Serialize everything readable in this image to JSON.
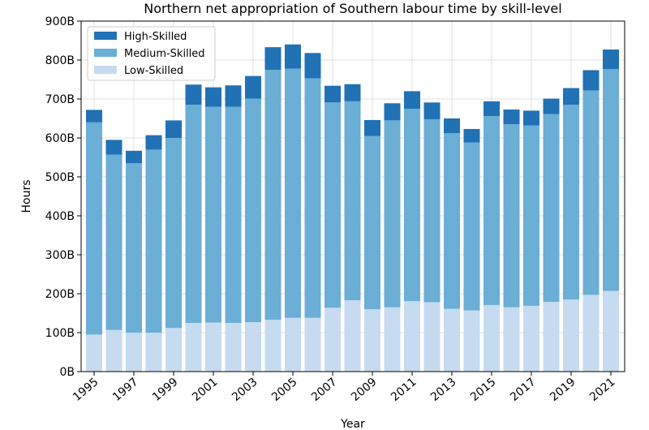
{
  "chart_data": {
    "type": "bar",
    "stacked": true,
    "title": "Northern net appropriation of Southern labour time by skill-level",
    "xlabel": "Year",
    "ylabel": "Hours",
    "ylim": [
      0,
      900
    ],
    "y_unit_suffix": "B",
    "y_ticks": [
      0,
      100,
      200,
      300,
      400,
      500,
      600,
      700,
      800,
      900
    ],
    "y_tick_labels": [
      "0B",
      "100B",
      "200B",
      "300B",
      "400B",
      "500B",
      "600B",
      "700B",
      "800B",
      "900B"
    ],
    "x_tick_labels": [
      "1995",
      "1997",
      "1999",
      "2001",
      "2003",
      "2005",
      "2007",
      "2009",
      "2011",
      "2013",
      "2015",
      "2017",
      "2019",
      "2021"
    ],
    "grid": true,
    "legend_position": "top-left",
    "categories": [
      "1995",
      "1996",
      "1997",
      "1998",
      "1999",
      "2000",
      "2001",
      "2002",
      "2003",
      "2004",
      "2005",
      "2006",
      "2007",
      "2008",
      "2009",
      "2010",
      "2011",
      "2012",
      "2013",
      "2014",
      "2015",
      "2016",
      "2017",
      "2018",
      "2019",
      "2020",
      "2021"
    ],
    "series": [
      {
        "name": "Low-Skilled",
        "color": "#c6dbef",
        "values": [
          95,
          107,
          100,
          100,
          112,
          125,
          126,
          125,
          127,
          133,
          138,
          138,
          164,
          183,
          160,
          165,
          181,
          178,
          161,
          157,
          171,
          165,
          169,
          179,
          185,
          197,
          207
        ]
      },
      {
        "name": "Medium-Skilled",
        "color": "#6baed6",
        "values": [
          545,
          450,
          435,
          470,
          488,
          560,
          554,
          555,
          574,
          642,
          640,
          615,
          527,
          511,
          445,
          480,
          494,
          470,
          451,
          431,
          485,
          470,
          463,
          482,
          500,
          525,
          570
        ]
      },
      {
        "name": "High-Skilled",
        "color": "#2171b5",
        "values": [
          32,
          38,
          32,
          37,
          45,
          52,
          50,
          55,
          58,
          58,
          62,
          65,
          43,
          44,
          41,
          44,
          45,
          43,
          38,
          35,
          38,
          38,
          38,
          40,
          43,
          52,
          50
        ]
      }
    ],
    "legend_entries": [
      "High-Skilled",
      "Medium-Skilled",
      "Low-Skilled"
    ]
  }
}
